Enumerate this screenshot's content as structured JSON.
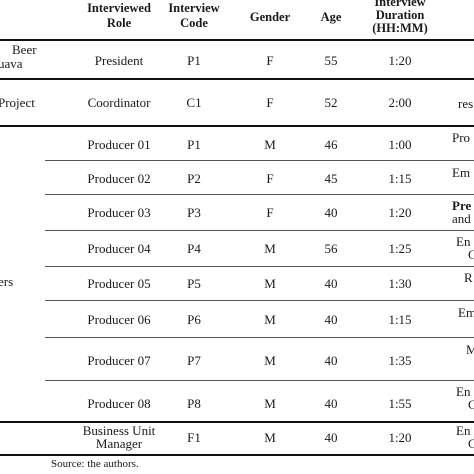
{
  "table": {
    "headers": {
      "role": [
        "Interviewed",
        "Role"
      ],
      "code": [
        "Interview",
        "Code"
      ],
      "gender": "Gender",
      "age": "Age",
      "duration": [
        "Interview",
        "Duration",
        "(HH:MM)"
      ]
    },
    "groups": {
      "g1": [
        "Beer",
        "uava"
      ],
      "g2": "Project",
      "g3": "ers"
    },
    "rows": [
      {
        "role": "President",
        "code": "P1",
        "gender": "F",
        "age": "55",
        "duration": "1:20",
        "extra": ""
      },
      {
        "role": "Coordinator",
        "code": "C1",
        "gender": "F",
        "age": "52",
        "duration": "2:00",
        "extra": "res"
      },
      {
        "role": "Producer 01",
        "code": "P1",
        "gender": "M",
        "age": "46",
        "duration": "1:00",
        "extra": "Pro"
      },
      {
        "role": "Producer 02",
        "code": "P2",
        "gender": "F",
        "age": "45",
        "duration": "1:15",
        "extra": "Em"
      },
      {
        "role": "Producer 03",
        "code": "P3",
        "gender": "F",
        "age": "40",
        "duration": "1:20",
        "extra": [
          "Pre",
          "and"
        ]
      },
      {
        "role": "Producer 04",
        "code": "P4",
        "gender": "M",
        "age": "56",
        "duration": "1:25",
        "extra": [
          "En",
          "C"
        ]
      },
      {
        "role": "Producer 05",
        "code": "P5",
        "gender": "M",
        "age": "40",
        "duration": "1:30",
        "extra": "R"
      },
      {
        "role": "Producer 06",
        "code": "P6",
        "gender": "M",
        "age": "40",
        "duration": "1:15",
        "extra": "Em"
      },
      {
        "role": "Producer 07",
        "code": "P7",
        "gender": "M",
        "age": "40",
        "duration": "1:35",
        "extra": "M"
      },
      {
        "role": "Producer 08",
        "code": "P8",
        "gender": "M",
        "age": "40",
        "duration": "1:55",
        "extra": [
          "En",
          "C"
        ]
      },
      {
        "role": [
          "Business Unit",
          "Manager"
        ],
        "code": "F1",
        "gender": "M",
        "age": "40",
        "duration": "1:20",
        "extra": [
          "En",
          "C"
        ]
      }
    ],
    "source": "Source: the authors."
  }
}
